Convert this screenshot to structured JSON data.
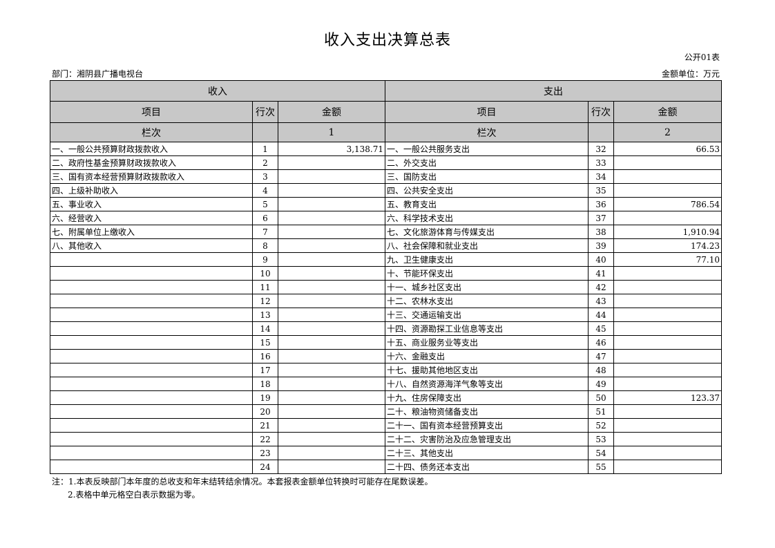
{
  "title": "收入支出决算总表",
  "table_code": "公开01表",
  "department": "部门：湘阴县广播电视台",
  "unit": "金额单位：万元",
  "headers": {
    "income": "收入",
    "expense": "支出",
    "item": "项目",
    "row_no": "行次",
    "amount": "金额",
    "column_no": "栏次",
    "col1": "1",
    "col2": "2"
  },
  "income_rows": [
    {
      "item": "一、一般公共预算财政拨款收入",
      "no": "1",
      "amount": "3,138.71"
    },
    {
      "item": "二、政府性基金预算财政拨款收入",
      "no": "2",
      "amount": ""
    },
    {
      "item": "三、国有资本经营预算财政拨款收入",
      "no": "3",
      "amount": ""
    },
    {
      "item": "四、上级补助收入",
      "no": "4",
      "amount": ""
    },
    {
      "item": "五、事业收入",
      "no": "5",
      "amount": ""
    },
    {
      "item": "六、经营收入",
      "no": "6",
      "amount": ""
    },
    {
      "item": "七、附属单位上缴收入",
      "no": "7",
      "amount": ""
    },
    {
      "item": "八、其他收入",
      "no": "8",
      "amount": ""
    },
    {
      "item": "",
      "no": "9",
      "amount": ""
    },
    {
      "item": "",
      "no": "10",
      "amount": ""
    },
    {
      "item": "",
      "no": "11",
      "amount": ""
    },
    {
      "item": "",
      "no": "12",
      "amount": ""
    },
    {
      "item": "",
      "no": "13",
      "amount": ""
    },
    {
      "item": "",
      "no": "14",
      "amount": ""
    },
    {
      "item": "",
      "no": "15",
      "amount": ""
    },
    {
      "item": "",
      "no": "16",
      "amount": ""
    },
    {
      "item": "",
      "no": "17",
      "amount": ""
    },
    {
      "item": "",
      "no": "18",
      "amount": ""
    },
    {
      "item": "",
      "no": "19",
      "amount": ""
    },
    {
      "item": "",
      "no": "20",
      "amount": ""
    },
    {
      "item": "",
      "no": "21",
      "amount": ""
    },
    {
      "item": "",
      "no": "22",
      "amount": ""
    },
    {
      "item": "",
      "no": "23",
      "amount": ""
    },
    {
      "item": "",
      "no": "24",
      "amount": ""
    }
  ],
  "expense_rows": [
    {
      "item": "一、一般公共服务支出",
      "no": "32",
      "amount": "66.53"
    },
    {
      "item": "二、外交支出",
      "no": "33",
      "amount": ""
    },
    {
      "item": "三、国防支出",
      "no": "34",
      "amount": ""
    },
    {
      "item": "四、公共安全支出",
      "no": "35",
      "amount": ""
    },
    {
      "item": "五、教育支出",
      "no": "36",
      "amount": "786.54"
    },
    {
      "item": "六、科学技术支出",
      "no": "37",
      "amount": ""
    },
    {
      "item": "七、文化旅游体育与传媒支出",
      "no": "38",
      "amount": "1,910.94"
    },
    {
      "item": "八、社会保障和就业支出",
      "no": "39",
      "amount": "174.23"
    },
    {
      "item": "九、卫生健康支出",
      "no": "40",
      "amount": "77.10"
    },
    {
      "item": "十、节能环保支出",
      "no": "41",
      "amount": ""
    },
    {
      "item": "十一、城乡社区支出",
      "no": "42",
      "amount": ""
    },
    {
      "item": "十二、农林水支出",
      "no": "43",
      "amount": ""
    },
    {
      "item": "十三、交通运输支出",
      "no": "44",
      "amount": ""
    },
    {
      "item": "十四、资源勘探工业信息等支出",
      "no": "45",
      "amount": ""
    },
    {
      "item": "十五、商业服务业等支出",
      "no": "46",
      "amount": ""
    },
    {
      "item": "十六、金融支出",
      "no": "47",
      "amount": ""
    },
    {
      "item": "十七、援助其他地区支出",
      "no": "48",
      "amount": ""
    },
    {
      "item": "十八、自然资源海洋气象等支出",
      "no": "49",
      "amount": ""
    },
    {
      "item": "十九、住房保障支出",
      "no": "50",
      "amount": "123.37"
    },
    {
      "item": "二十、粮油物资储备支出",
      "no": "51",
      "amount": ""
    },
    {
      "item": "二十一、国有资本经营预算支出",
      "no": "52",
      "amount": ""
    },
    {
      "item": "二十二、灾害防治及应急管理支出",
      "no": "53",
      "amount": ""
    },
    {
      "item": "二十三、其他支出",
      "no": "54",
      "amount": ""
    },
    {
      "item": "二十四、债务还本支出",
      "no": "55",
      "amount": ""
    }
  ],
  "notes": [
    "注：1.本表反映部门本年度的总收支和年末结转结余情况。本套报表金额单位转换时可能存在尾数误差。",
    "2.表格中单元格空白表示数据为零。"
  ],
  "colors": {
    "header_bg": "#c8c8c8"
  }
}
